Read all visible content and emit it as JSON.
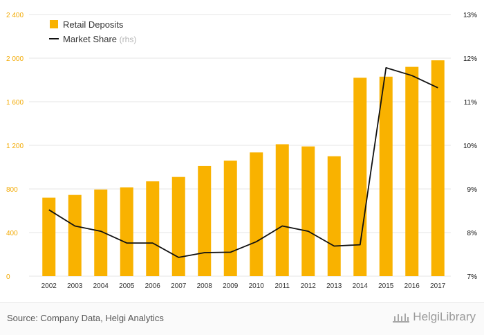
{
  "colors": {
    "bar": "#F9B200",
    "line": "#111111",
    "left_axis_text": "#F2A900",
    "right_axis_text": "#111111",
    "grid": "#e6e6e6",
    "rhs_note": "#b5b5b5"
  },
  "legend": {
    "bar_label": "Retail Deposits",
    "line_label": "Market Share",
    "line_note": "(rhs)"
  },
  "footer": {
    "source": "Source: Company Data, Helgi Analytics",
    "brand": "HelgiLibrary",
    "brand_icon": "library-building-icon"
  },
  "chart_data": {
    "type": "bar",
    "title": "",
    "categories": [
      "2002",
      "2003",
      "2004",
      "2005",
      "2006",
      "2007",
      "2008",
      "2009",
      "2010",
      "2011",
      "2012",
      "2013",
      "2014",
      "2015",
      "2016",
      "2017"
    ],
    "series": [
      {
        "name": "Retail Deposits",
        "type": "bar",
        "axis": "left",
        "values": [
          720,
          745,
          795,
          815,
          870,
          910,
          1010,
          1060,
          1135,
          1210,
          1190,
          1100,
          1820,
          1830,
          1920,
          1980
        ]
      },
      {
        "name": "Market Share (rhs)",
        "type": "line",
        "axis": "right",
        "values": [
          8.52,
          8.15,
          8.03,
          7.76,
          7.76,
          7.43,
          7.54,
          7.55,
          7.79,
          8.15,
          8.03,
          7.69,
          7.72,
          11.78,
          11.6,
          11.32
        ]
      }
    ],
    "y_left": {
      "ylim": [
        0,
        2400
      ],
      "ticks": [
        0,
        400,
        800,
        1200,
        1600,
        2000,
        2400
      ],
      "tick_labels": [
        "0",
        "400",
        "800",
        "1 200",
        "1 600",
        "2 000",
        "2 400"
      ]
    },
    "y_right": {
      "ylim": [
        7,
        13
      ],
      "ticks": [
        7,
        8,
        9,
        10,
        11,
        12,
        13
      ],
      "tick_labels": [
        "7%",
        "8%",
        "9%",
        "10%",
        "11%",
        "12%",
        "13%"
      ]
    },
    "xlabel": "",
    "ylabel": "",
    "grid": true,
    "legend_position": "top-left"
  }
}
